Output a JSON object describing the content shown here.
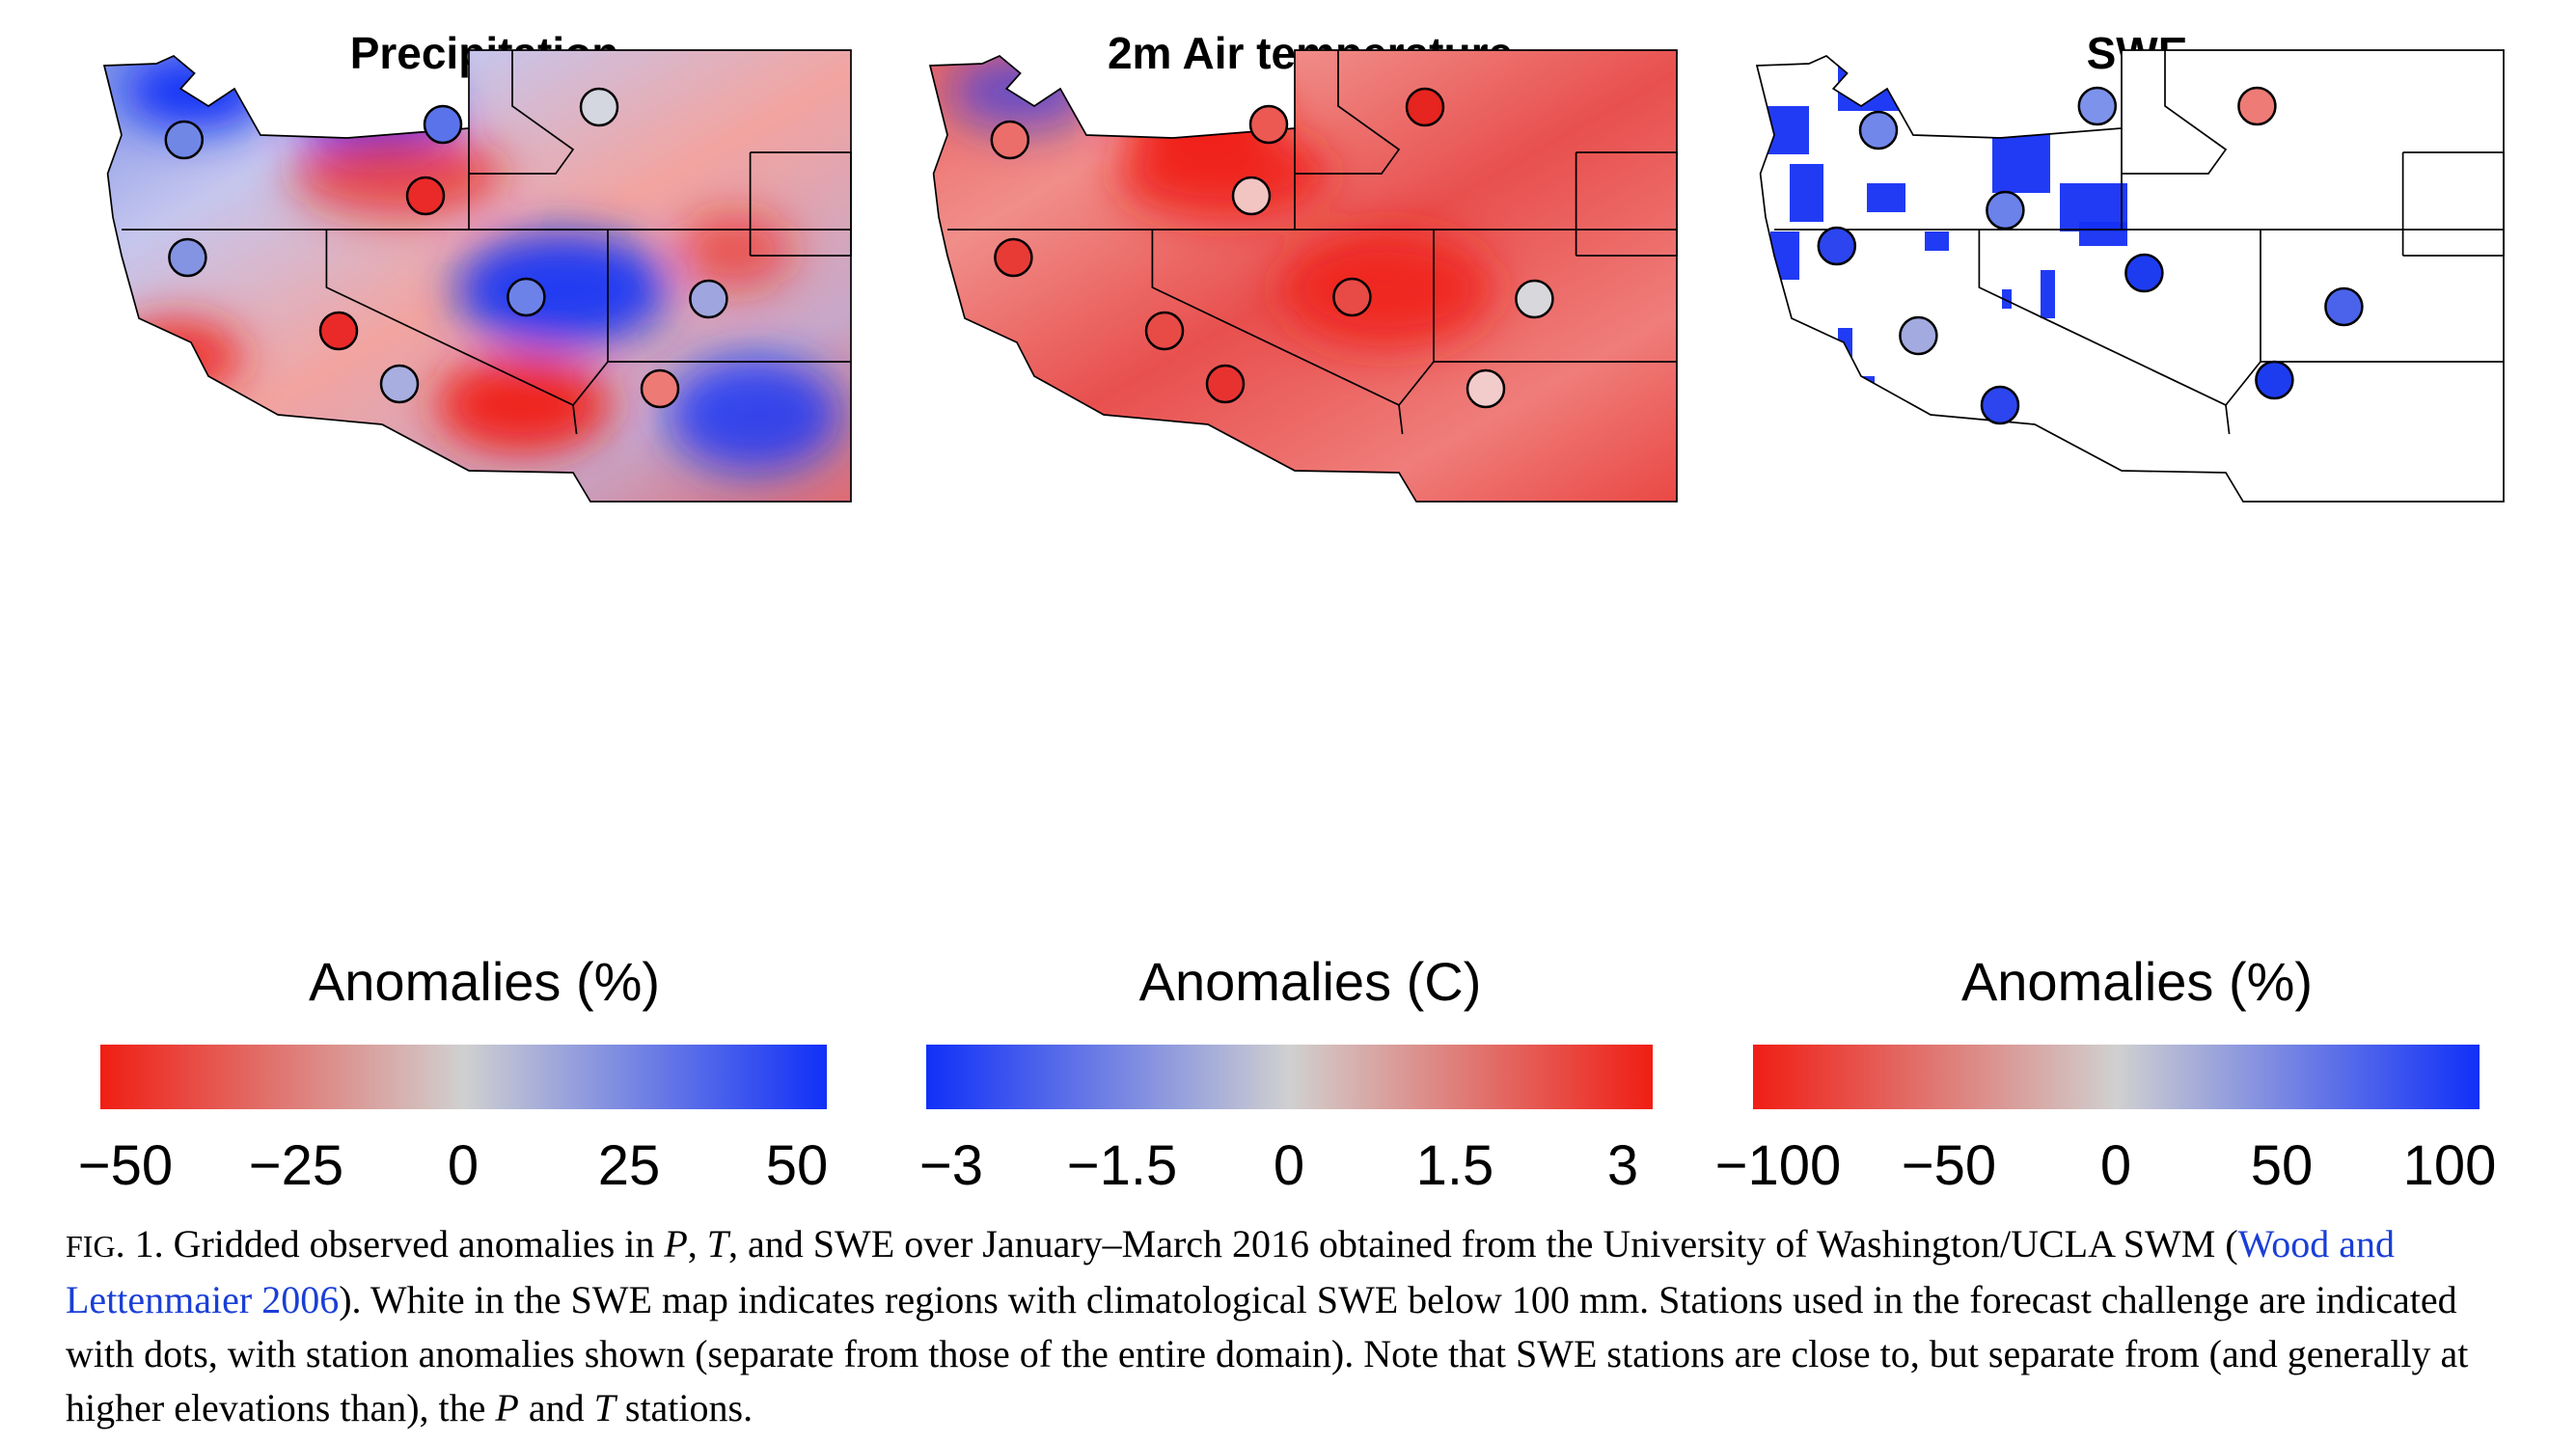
{
  "panels": [
    {
      "title": "Precipitation",
      "colorbar": {
        "title": "Anomalies (%)",
        "ticks": [
          "−50",
          "−25",
          "0",
          "25",
          "50"
        ],
        "low_color": "#f01e14",
        "mid_color": "#d0d0d0",
        "high_color": "#1030f8"
      },
      "base_gradient": [
        "#6f86e8",
        "#c5c6ee",
        "#f2a4a0",
        "#c7a7c9",
        "#e45a5a"
      ],
      "blobs": [
        {
          "kind": "blue",
          "level": 0.95
        },
        {
          "kind": "blue",
          "level": 0.8
        },
        {
          "kind": "red",
          "level": 0.7
        },
        {
          "kind": "blue",
          "level": 0.9
        },
        {
          "kind": "red",
          "level": 0.95
        },
        {
          "kind": "red",
          "level": 0.85
        },
        {
          "kind": "blue",
          "level": 0.8
        },
        {
          "kind": "red",
          "level": 0.6
        }
      ],
      "stations": [
        {
          "color": "#7087e6"
        },
        {
          "color": "#5a73ea"
        },
        {
          "color": "#d4d6e0"
        },
        {
          "color": "#ea2a28"
        },
        {
          "color": "#8494e2"
        },
        {
          "color": "#6d82e8"
        },
        {
          "color": "#9fa6df"
        },
        {
          "color": "#ea2a28"
        },
        {
          "color": "#a9aee0"
        },
        {
          "color": "#ee7a76"
        }
      ]
    },
    {
      "title": "2m Air temperature",
      "colorbar": {
        "title": "Anomalies (C)",
        "ticks": [
          "−3",
          "−1.5",
          "0",
          "1.5",
          "3"
        ],
        "low_color": "#1030f8",
        "mid_color": "#d0d0d0",
        "high_color": "#f01e14"
      },
      "base_gradient": [
        "#ec5c5a",
        "#f08e8a",
        "#e8504e",
        "#ef7d7a",
        "#e83a36"
      ],
      "blobs": [
        {
          "kind": "blue",
          "level": 0.6
        },
        {
          "kind": "red",
          "level": 0.95
        },
        {
          "kind": "red",
          "level": 0.9
        },
        {
          "kind": "red",
          "level": 0.85
        }
      ],
      "stations": [
        {
          "color": "#ec6e6a"
        },
        {
          "color": "#ec5852"
        },
        {
          "color": "#e62420"
        },
        {
          "color": "#f2c4c2"
        },
        {
          "color": "#e93b36"
        },
        {
          "color": "#e84a46"
        },
        {
          "color": "#d8d8dc"
        },
        {
          "color": "#e84a46"
        },
        {
          "color": "#e83230"
        },
        {
          "color": "#f2cccb"
        }
      ]
    },
    {
      "title": "SWE",
      "colorbar": {
        "title": "Anomalies (%)",
        "ticks": [
          "−100",
          "−50",
          "0",
          "50",
          "100"
        ],
        "low_color": "#f01e14",
        "mid_color": "#d0d0d0",
        "high_color": "#1030f8"
      },
      "base_gradient": [
        "#ffffff",
        "#ffffff",
        "#ffffff",
        "#ffffff",
        "#ffffff"
      ],
      "snow_color": "#1530f4",
      "stations": [
        {
          "color": "#7188ea"
        },
        {
          "color": "#7d92ea"
        },
        {
          "color": "#ee7b75"
        },
        {
          "color": "#6a82ea"
        },
        {
          "color": "#2c45ee"
        },
        {
          "color": "#1e3cef"
        },
        {
          "color": "#4a63ea"
        },
        {
          "color": "#a3aadf"
        },
        {
          "color": "#2c45ee"
        },
        {
          "color": "#1e3cef"
        }
      ]
    }
  ],
  "caption": {
    "fig_label": "Fig",
    "fig_rest": ". 1. Gridded observed anomalies in ",
    "p": "P",
    "sep1": ", ",
    "t": "T",
    "mid1": ", and SWE over January–March 2016 obtained from the University of Washington/UCLA SWM (",
    "link": "Wood and Lettenmaier 2006",
    "rest": "). White in the SWE map indicates regions with climatological SWE below 100 mm. Stations used in the forecast challenge are indicated with dots, with station anomalies shown (separate from those of the entire domain). Note that SWE stations are close to, but separate from (and generally at higher elevations than), the ",
    "p2": "P",
    "and": " and ",
    "t2": "T",
    "end": " stations."
  }
}
